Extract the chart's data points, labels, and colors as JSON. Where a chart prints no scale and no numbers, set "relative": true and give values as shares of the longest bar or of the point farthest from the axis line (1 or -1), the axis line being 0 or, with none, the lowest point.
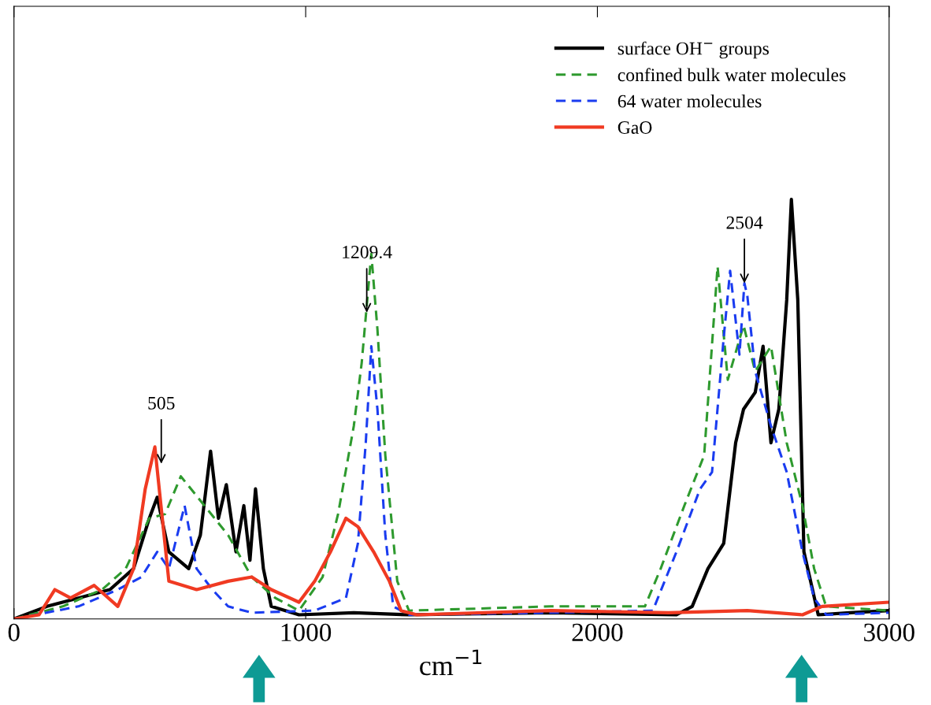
{
  "chart_data": {
    "type": "line",
    "relative": true,
    "xlabel": "cm$^{−1}$",
    "xlim": [
      0,
      3000
    ],
    "xticks": [
      0,
      1000,
      2000,
      3000
    ],
    "legend": "top right",
    "grid": false,
    "series": [
      {
        "name": "surface OH$^{−}$ groups",
        "color": "#000000",
        "line_style": "solid",
        "x": [
          0,
          113,
          221,
          329,
          410,
          464,
          491,
          531,
          599,
          639,
          674,
          701,
          728,
          761,
          788,
          809,
          828,
          855,
          882,
          977,
          1165,
          1354,
          1840,
          2271,
          2325,
          2379,
          2433,
          2474,
          2501,
          2541,
          2568,
          2595,
          2622,
          2649,
          2665,
          2687,
          2708,
          2757,
          2865,
          3000
        ],
        "values": [
          0,
          0.03,
          0.05,
          0.07,
          0.12,
          0.24,
          0.29,
          0.16,
          0.12,
          0.2,
          0.4,
          0.24,
          0.32,
          0.16,
          0.27,
          0.14,
          0.31,
          0.12,
          0.03,
          0.01,
          0.015,
          0.01,
          0.015,
          0.01,
          0.03,
          0.12,
          0.18,
          0.42,
          0.5,
          0.54,
          0.65,
          0.42,
          0.5,
          0.76,
          1.0,
          0.76,
          0.16,
          0.01,
          0.015,
          0.02
        ]
      },
      {
        "name": "confined bulk water molecules",
        "color": "#2e9a2e",
        "line_style": "dashed",
        "x": [
          0,
          167,
          302,
          383,
          464,
          518,
          572,
          653,
          734,
          815,
          896,
          977,
          1058,
          1111,
          1165,
          1192,
          1225,
          1246,
          1273,
          1314,
          1354,
          1840,
          2163,
          2217,
          2298,
          2366,
          2412,
          2447,
          2501,
          2541,
          2595,
          2649,
          2703,
          2743,
          2784,
          3000
        ],
        "values": [
          0,
          0.03,
          0.07,
          0.12,
          0.24,
          0.25,
          0.34,
          0.27,
          0.2,
          0.1,
          0.05,
          0.02,
          0.1,
          0.25,
          0.46,
          0.61,
          0.87,
          0.69,
          0.39,
          0.09,
          0.02,
          0.03,
          0.03,
          0.12,
          0.27,
          0.39,
          0.84,
          0.57,
          0.7,
          0.59,
          0.65,
          0.42,
          0.27,
          0.12,
          0.03,
          0.02
        ]
      },
      {
        "name": "64 water molecules",
        "color": "#1a3cf0",
        "line_style": "dashed",
        "x": [
          0,
          221,
          356,
          437,
          491,
          531,
          585,
          626,
          680,
          734,
          815,
          1031,
          1138,
          1179,
          1206,
          1225,
          1246,
          1273,
          1300,
          1354,
          1840,
          2190,
          2271,
          2352,
          2393,
          2433,
          2455,
          2487,
          2504,
          2514,
          2541,
          2595,
          2649,
          2703,
          2743,
          2784,
          3000
        ],
        "values": [
          0,
          0.03,
          0.07,
          0.1,
          0.16,
          0.12,
          0.27,
          0.12,
          0.07,
          0.03,
          0.015,
          0.02,
          0.05,
          0.18,
          0.42,
          0.65,
          0.5,
          0.2,
          0.03,
          0.01,
          0.015,
          0.02,
          0.16,
          0.31,
          0.35,
          0.67,
          0.83,
          0.63,
          0.8,
          0.77,
          0.59,
          0.46,
          0.35,
          0.16,
          0.05,
          0.01,
          0.015
        ]
      },
      {
        "name": "GaO",
        "color": "#f03a22",
        "line_style": "solid",
        "x": [
          0,
          86,
          140,
          194,
          275,
          356,
          410,
          450,
          483,
          504,
          531,
          626,
          734,
          815,
          882,
          977,
          1031,
          1085,
          1138,
          1179,
          1233,
          1287,
          1327,
          1381,
          1840,
          2244,
          2514,
          2703,
          2770,
          3000
        ],
        "values": [
          0,
          0.01,
          0.07,
          0.05,
          0.08,
          0.03,
          0.12,
          0.31,
          0.41,
          0.27,
          0.09,
          0.07,
          0.09,
          0.1,
          0.07,
          0.04,
          0.09,
          0.16,
          0.24,
          0.22,
          0.16,
          0.09,
          0.02,
          0.01,
          0.02,
          0.015,
          0.02,
          0.01,
          0.03,
          0.04
        ]
      }
    ],
    "annotations": [
      {
        "text": "505",
        "x": 505,
        "y": 0.37
      },
      {
        "text": "1209.4",
        "x": 1209.4,
        "y": 0.73
      },
      {
        "text": "2504",
        "x": 2504,
        "y": 0.8
      }
    ]
  }
}
